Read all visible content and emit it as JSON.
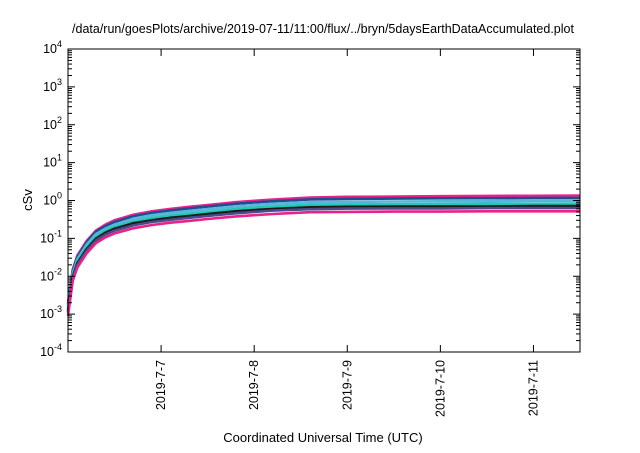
{
  "chart_data": {
    "type": "line",
    "title": "/data/run/goesPlots/archive/2019-07-11/11:00/flux/../bryn/5daysEarthDataAccumulated.plot",
    "xlabel": "Coordinated Universal Time (UTC)",
    "ylabel": "cSv",
    "yscale": "log",
    "ylim": [
      0.0001,
      10000
    ],
    "xlim": [
      0,
      5.5
    ],
    "y_ticks": [
      {
        "base": "10",
        "exp": "-4"
      },
      {
        "base": "10",
        "exp": "-3"
      },
      {
        "base": "10",
        "exp": "-2"
      },
      {
        "base": "10",
        "exp": "-1"
      },
      {
        "base": "10",
        "exp": "0"
      },
      {
        "base": "10",
        "exp": "1"
      },
      {
        "base": "10",
        "exp": "2"
      },
      {
        "base": "10",
        "exp": "3"
      },
      {
        "base": "10",
        "exp": "4"
      }
    ],
    "x_ticks": [
      {
        "label": "2019-7-7",
        "value": 1
      },
      {
        "label": "2019-7-8",
        "value": 2
      },
      {
        "label": "2019-7-9",
        "value": 3
      },
      {
        "label": "2019-7-10",
        "value": 4
      },
      {
        "label": "2019-7-11",
        "value": 5
      }
    ],
    "grid": false,
    "legend": "none",
    "x": [
      0,
      0.05,
      0.1,
      0.2,
      0.3,
      0.4,
      0.5,
      0.7,
      0.9,
      1.1,
      1.3,
      1.5,
      1.8,
      2.0,
      2.2,
      2.6,
      3.0,
      3.5,
      4.0,
      4.5,
      5.0,
      5.5
    ],
    "series": [
      {
        "color": "#e8228a",
        "values": [
          0.002,
          0.015,
          0.035,
          0.085,
          0.16,
          0.23,
          0.3,
          0.42,
          0.52,
          0.6,
          0.68,
          0.76,
          0.9,
          0.98,
          1.06,
          1.2,
          1.25,
          1.27,
          1.3,
          1.32,
          1.33,
          1.35
        ]
      },
      {
        "color": "#1f4e8c",
        "values": [
          0.0018,
          0.014,
          0.032,
          0.078,
          0.15,
          0.21,
          0.27,
          0.38,
          0.47,
          0.54,
          0.62,
          0.69,
          0.82,
          0.89,
          0.95,
          1.07,
          1.1,
          1.12,
          1.14,
          1.15,
          1.16,
          1.17
        ]
      },
      {
        "color": "#5ab4e0",
        "values": [
          0.0016,
          0.012,
          0.028,
          0.068,
          0.13,
          0.18,
          0.23,
          0.33,
          0.41,
          0.47,
          0.53,
          0.59,
          0.7,
          0.76,
          0.82,
          0.9,
          0.92,
          0.94,
          0.95,
          0.96,
          0.97,
          0.98
        ]
      },
      {
        "color": "#20c9b5",
        "values": [
          0.0014,
          0.011,
          0.025,
          0.06,
          0.11,
          0.16,
          0.2,
          0.28,
          0.35,
          0.4,
          0.45,
          0.5,
          0.6,
          0.65,
          0.7,
          0.77,
          0.79,
          0.8,
          0.81,
          0.82,
          0.82,
          0.83
        ]
      },
      {
        "color": "#1a1a1a",
        "values": [
          0.0012,
          0.0095,
          0.022,
          0.052,
          0.098,
          0.14,
          0.18,
          0.25,
          0.3,
          0.35,
          0.39,
          0.44,
          0.52,
          0.56,
          0.6,
          0.66,
          0.68,
          0.69,
          0.7,
          0.7,
          0.71,
          0.71
        ]
      },
      {
        "color": "#4a4a8c",
        "values": [
          0.0011,
          0.0088,
          0.02,
          0.047,
          0.088,
          0.125,
          0.16,
          0.22,
          0.27,
          0.31,
          0.35,
          0.39,
          0.46,
          0.5,
          0.54,
          0.59,
          0.61,
          0.62,
          0.62,
          0.63,
          0.63,
          0.63
        ]
      },
      {
        "color": "#e8228a",
        "values": [
          0.0009,
          0.0075,
          0.017,
          0.04,
          0.075,
          0.106,
          0.135,
          0.185,
          0.225,
          0.26,
          0.29,
          0.325,
          0.38,
          0.41,
          0.44,
          0.49,
          0.5,
          0.51,
          0.51,
          0.52,
          0.52,
          0.52
        ]
      }
    ]
  }
}
